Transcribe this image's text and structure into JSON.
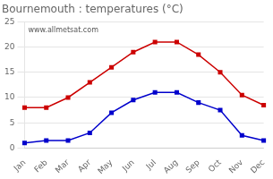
{
  "chart_data": {
    "type": "line",
    "title": "Bournemouth : temperatures (°C)",
    "categories": [
      "Jan",
      "Feb",
      "Mar",
      "Apr",
      "May",
      "Jun",
      "Jul",
      "Aug",
      "Sep",
      "Oct",
      "Nov",
      "Dec"
    ],
    "series": [
      {
        "color": "#cc0000",
        "marker": "square",
        "values": [
          8,
          8,
          10,
          13,
          16,
          19,
          21,
          21,
          18.5,
          15,
          10.5,
          8.5
        ]
      },
      {
        "color": "#0000cc",
        "marker": "square",
        "values": [
          1,
          1.5,
          1.5,
          3,
          7,
          9.5,
          11,
          11,
          9,
          7.5,
          2.5,
          1.5
        ]
      }
    ],
    "ylim": [
      0,
      25
    ],
    "yticks": [
      0,
      5,
      10,
      15,
      20,
      25
    ],
    "grid": "y",
    "annotations": [
      "www.allmetsat.com"
    ]
  }
}
